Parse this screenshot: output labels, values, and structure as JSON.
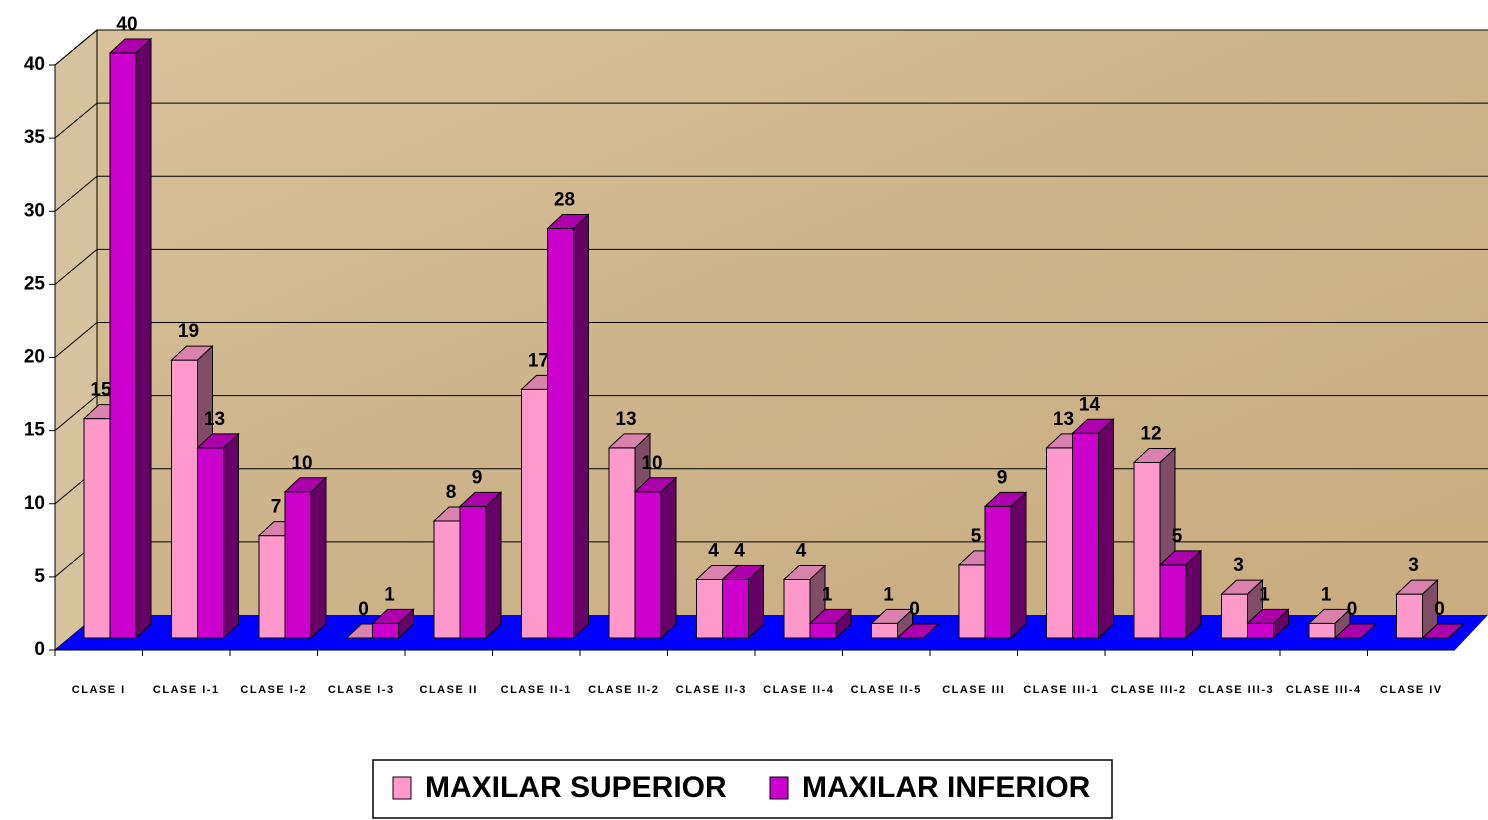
{
  "chart_data": {
    "type": "bar3d",
    "categories": [
      "CLASE I",
      "CLASE I-1",
      "CLASE I-2",
      "CLASE I-3",
      "CLASE II",
      "CLASE II-1",
      "CLASE II-2",
      "CLASE II-3",
      "CLASE II-4",
      "CLASE II-5",
      "CLASE III",
      "CLASE III-1",
      "CLASE III-2",
      "CLASE III-3",
      "CLASE III-4",
      "CLASE IV"
    ],
    "series": [
      {
        "name": "MAXILAR SUPERIOR",
        "color": "#ff99cc",
        "values": [
          15,
          19,
          7,
          0,
          8,
          17,
          13,
          4,
          4,
          1,
          5,
          13,
          12,
          3,
          1,
          3
        ]
      },
      {
        "name": "MAXILAR INFERIOR",
        "color": "#cc00cc",
        "values": [
          40,
          13,
          10,
          1,
          9,
          28,
          10,
          4,
          1,
          0,
          9,
          14,
          5,
          1,
          0,
          0
        ]
      }
    ],
    "ylim": [
      0,
      40
    ],
    "yticks": [
      0,
      5,
      10,
      15,
      20,
      25,
      30,
      35,
      40
    ],
    "grid": true,
    "floor_color": "#0000ff"
  }
}
